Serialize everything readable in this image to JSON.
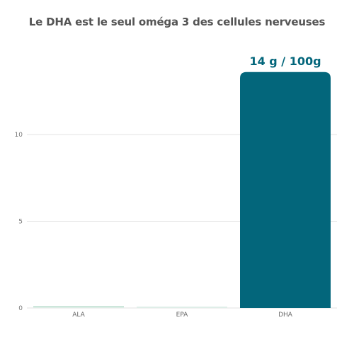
{
  "title": "Le DHA est le seul oméga 3 des cellules nerveuses",
  "colors": {
    "title": "#555555",
    "dha_bar": "#03667b",
    "light_bars": "#dfeee8",
    "light_bar_top": "#a9d4c1",
    "label": "#03667b"
  },
  "chart_data": {
    "type": "bar",
    "title": "Le DHA est le seul oméga 3 des cellules nerveuses",
    "categories": [
      "ALA",
      "EPA",
      "DHA"
    ],
    "values": [
      0.05,
      0.03,
      13.6
    ],
    "data_labels": [
      "",
      "",
      "14 g / 100g"
    ],
    "ylim": [
      0,
      16.5
    ],
    "yticks": [
      0,
      5,
      10
    ],
    "grid": true,
    "xlabel": "",
    "ylabel": ""
  }
}
